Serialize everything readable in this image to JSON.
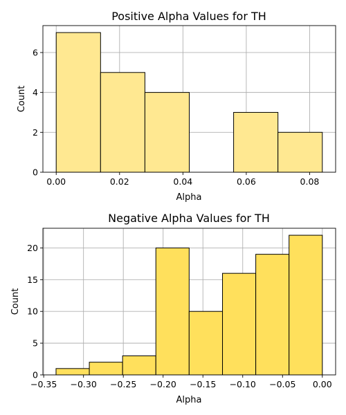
{
  "chart_data": [
    {
      "type": "bar",
      "title": "Positive Alpha Values for TH",
      "xlabel": "Alpha",
      "ylabel": "Count",
      "xlim": [
        -0.0042,
        0.0882
      ],
      "ylim": [
        0,
        7.35
      ],
      "xticks": [
        0.0,
        0.02,
        0.04,
        0.06,
        0.08
      ],
      "xtick_labels": [
        "0.00",
        "0.02",
        "0.04",
        "0.06",
        "0.08"
      ],
      "yticks": [
        0,
        2,
        4,
        6
      ],
      "ytick_labels": [
        "0",
        "2",
        "4",
        "6"
      ],
      "grid": true,
      "bar_color": "#ffe891",
      "bins": [
        {
          "x0": 0.0,
          "x1": 0.014,
          "count": 7
        },
        {
          "x0": 0.014,
          "x1": 0.028,
          "count": 5
        },
        {
          "x0": 0.028,
          "x1": 0.042,
          "count": 4
        },
        {
          "x0": 0.042,
          "x1": 0.056,
          "count": 0
        },
        {
          "x0": 0.056,
          "x1": 0.07,
          "count": 3
        },
        {
          "x0": 0.07,
          "x1": 0.084,
          "count": 2
        }
      ]
    },
    {
      "type": "bar",
      "title": "Negative Alpha Values for TH",
      "xlabel": "Alpha",
      "ylabel": "Count",
      "xlim": [
        -0.351,
        0.0167
      ],
      "ylim": [
        0,
        23.1
      ],
      "xticks": [
        -0.35,
        -0.3,
        -0.25,
        -0.2,
        -0.15,
        -0.1,
        -0.05,
        0.0
      ],
      "xtick_labels": [
        "−0.35",
        "−0.30",
        "−0.25",
        "−0.20",
        "−0.15",
        "−0.10",
        "−0.05",
        "0.00"
      ],
      "yticks": [
        0,
        5,
        10,
        15,
        20
      ],
      "ytick_labels": [
        "0",
        "5",
        "10",
        "15",
        "20"
      ],
      "grid": true,
      "bar_color": "#ffe05c",
      "bins": [
        {
          "x0": -0.3345,
          "x1": -0.2927,
          "count": 1
        },
        {
          "x0": -0.2927,
          "x1": -0.2509,
          "count": 2
        },
        {
          "x0": -0.2509,
          "x1": -0.2091,
          "count": 3
        },
        {
          "x0": -0.2091,
          "x1": -0.1673,
          "count": 20
        },
        {
          "x0": -0.1673,
          "x1": -0.1254,
          "count": 10
        },
        {
          "x0": -0.1254,
          "x1": -0.0836,
          "count": 16
        },
        {
          "x0": -0.0836,
          "x1": -0.0418,
          "count": 19
        },
        {
          "x0": -0.0418,
          "x1": 0.0,
          "count": 22
        }
      ]
    }
  ]
}
